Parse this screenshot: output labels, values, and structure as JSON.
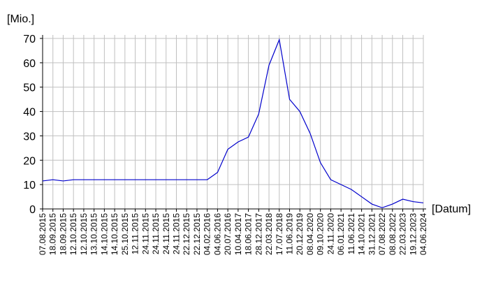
{
  "chart_data": {
    "type": "line",
    "y_label": "[Mio.]",
    "x_label": "[Datum]",
    "categories": [
      "07.08.2015",
      "18.09.2015",
      "18.09.2015",
      "12.10.2015",
      "12.10.2015",
      "13.10.2015",
      "14.10.2015",
      "14.10.2015",
      "25.10.2015",
      "12.11.2015",
      "24.11.2015",
      "24.11.2015",
      "24.11.2015",
      "24.11.2015",
      "22.12.2015",
      "22.12.2015",
      "04.02.2016",
      "04.06.2016",
      "20.07.2016",
      "10.04.2017",
      "18.06.2017",
      "28.12.2017",
      "22.03.2018",
      "17.07.2018",
      "11.06.2019",
      "20.12.2019",
      "08.04.2020",
      "09.10.2020",
      "24.11.2020",
      "06.01.2021",
      "11.06.2021",
      "14.10.2021",
      "31.12.2021",
      "07.08.2022",
      "08.08.2022",
      "22.03.2023",
      "19.12.2023",
      "04.06.2024"
    ],
    "series": [
      {
        "color": "#0000cc",
        "values": [
          11.5,
          12,
          11.5,
          12,
          12,
          12,
          12,
          12,
          12,
          12,
          12,
          12,
          12,
          12,
          12,
          12,
          12,
          15,
          24.5,
          27.5,
          29.5,
          39,
          59,
          69.5,
          45,
          40,
          31,
          19,
          12,
          10,
          8,
          5,
          2,
          0.5,
          2,
          4,
          3,
          2.5
        ]
      }
    ],
    "ylim": [
      0,
      70
    ],
    "yticks": [
      0,
      10,
      20,
      30,
      40,
      50,
      60,
      70
    ],
    "grid": true
  }
}
